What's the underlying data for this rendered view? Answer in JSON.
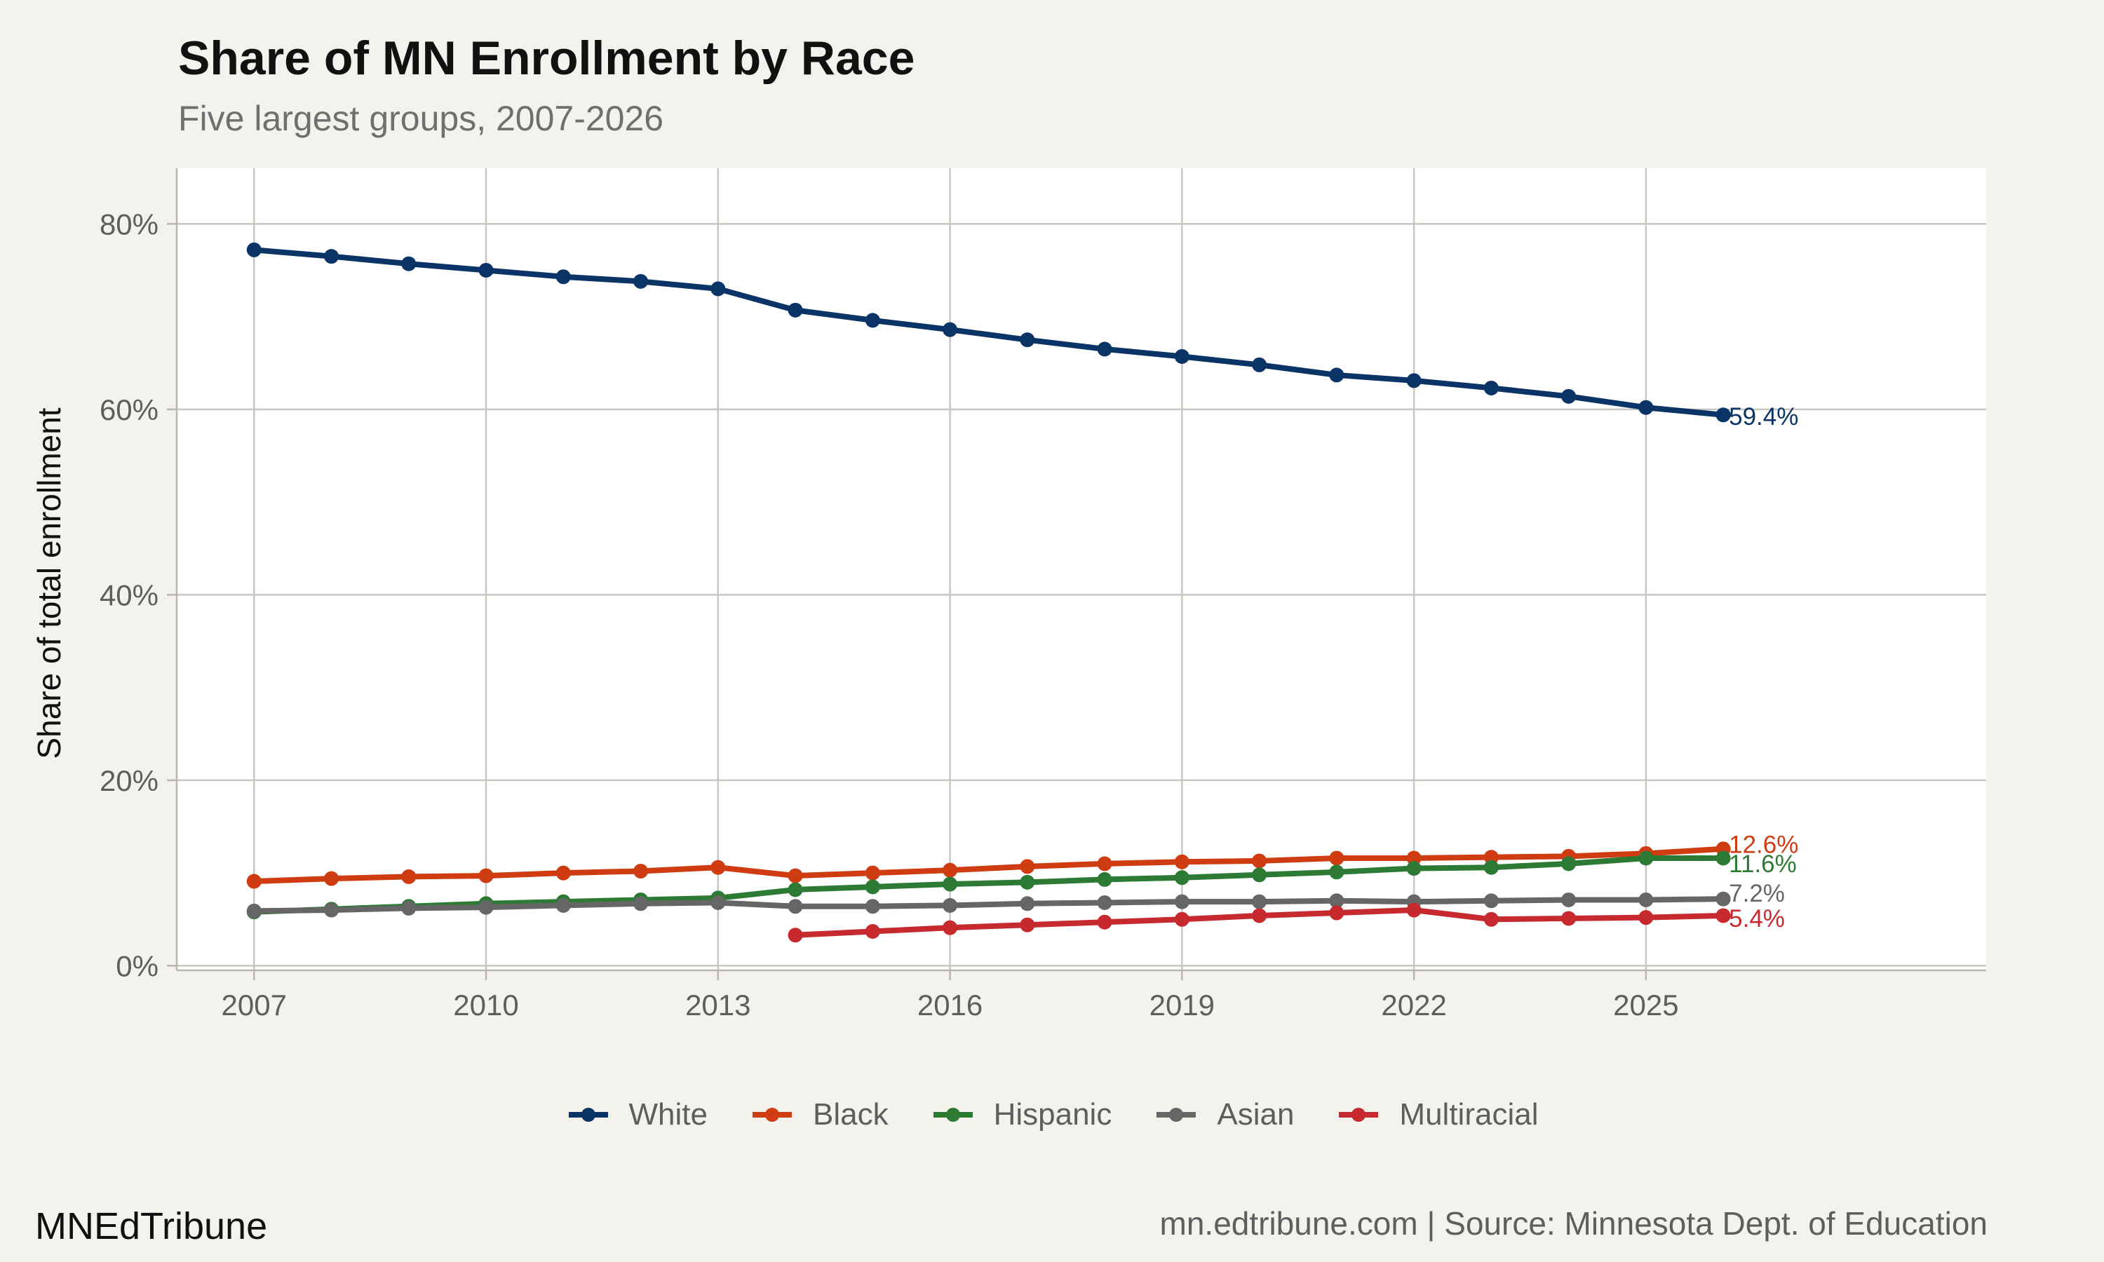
{
  "chart_data": {
    "type": "line",
    "title": "Share of MN Enrollment by Race",
    "subtitle": "Five largest groups, 2007-2026",
    "xlabel": "",
    "ylabel": "Share of total enrollment",
    "x": [
      2007,
      2008,
      2009,
      2010,
      2011,
      2012,
      2013,
      2014,
      2015,
      2016,
      2017,
      2018,
      2019,
      2020,
      2021,
      2022,
      2023,
      2024,
      2025,
      2026
    ],
    "xticks": [
      2007,
      2010,
      2013,
      2016,
      2019,
      2022,
      2025
    ],
    "xtick_labels": [
      "2007",
      "2010",
      "2013",
      "2016",
      "2019",
      "2022",
      "2025"
    ],
    "xlim": [
      2006,
      2029.4
    ],
    "yticks": [
      0,
      20,
      40,
      60,
      80
    ],
    "ytick_labels": [
      "0%",
      "20%",
      "40%",
      "60%",
      "80%"
    ],
    "ylim": [
      -0.5,
      86
    ],
    "grid": true,
    "legend_position": "bottom",
    "series": [
      {
        "name": "White",
        "color": "#0b3466",
        "values": [
          77.2,
          76.5,
          75.7,
          75.0,
          74.3,
          73.8,
          73.0,
          70.7,
          69.6,
          68.6,
          67.5,
          66.5,
          65.7,
          64.8,
          63.7,
          63.1,
          62.3,
          61.4,
          60.2,
          59.4
        ],
        "end_label": "59.4%"
      },
      {
        "name": "Black",
        "color": "#d03c12",
        "values": [
          9.1,
          9.4,
          9.6,
          9.7,
          10.0,
          10.2,
          10.6,
          9.7,
          10.0,
          10.3,
          10.7,
          11.0,
          11.2,
          11.3,
          11.6,
          11.6,
          11.7,
          11.8,
          12.1,
          12.6
        ],
        "end_label": "12.6%"
      },
      {
        "name": "Hispanic",
        "color": "#2c7a33",
        "values": [
          5.8,
          6.1,
          6.4,
          6.7,
          6.9,
          7.1,
          7.3,
          8.2,
          8.5,
          8.8,
          9.0,
          9.3,
          9.5,
          9.8,
          10.1,
          10.5,
          10.6,
          11.0,
          11.6,
          11.6
        ],
        "end_label": "11.6%"
      },
      {
        "name": "Asian",
        "color": "#666666",
        "values": [
          5.9,
          6.0,
          6.2,
          6.3,
          6.5,
          6.7,
          6.8,
          6.4,
          6.4,
          6.5,
          6.7,
          6.8,
          6.9,
          6.9,
          7.0,
          6.9,
          7.0,
          7.1,
          7.1,
          7.2
        ],
        "end_label": "7.2%"
      },
      {
        "name": "Multiracial",
        "color": "#c62a2f",
        "values": [
          null,
          null,
          null,
          null,
          null,
          null,
          null,
          3.3,
          3.7,
          4.1,
          4.4,
          4.7,
          5.0,
          5.4,
          5.7,
          6.0,
          5.0,
          5.1,
          5.2,
          5.4
        ],
        "end_label": "5.4%"
      }
    ]
  },
  "footer": {
    "brand": "MNEdTribune",
    "source": "mn.edtribune.com | Source: Minnesota Dept. of Education"
  }
}
